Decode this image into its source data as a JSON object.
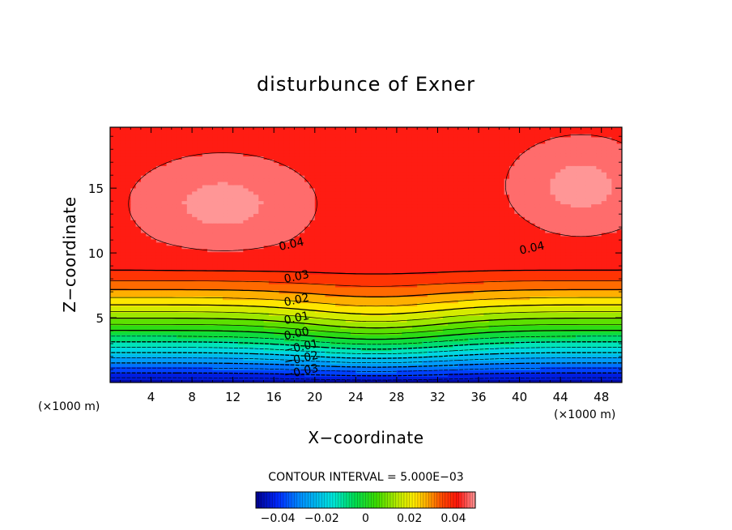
{
  "chart_data": {
    "type": "heatmap",
    "title": "disturbunce of Exner",
    "xlabel": "X−coordinate",
    "ylabel": "Z−coordinate",
    "x_unit_left": "(×1000 m)",
    "x_unit_right": "(×1000 m)",
    "xlim": [
      0,
      50
    ],
    "ylim": [
      0,
      19.7
    ],
    "x_ticks": [
      4,
      8,
      12,
      16,
      20,
      24,
      28,
      32,
      36,
      40,
      44,
      48
    ],
    "y_ticks": [
      5,
      10,
      15
    ],
    "contour_interval_text": "CONTOUR INTERVAL = 5.000E−03",
    "contour_interval": 0.005,
    "contour_labels": [
      {
        "text": "0.04",
        "x": 16.5,
        "y": 10.5
      },
      {
        "text": "0.04",
        "x": 40.0,
        "y": 10.2
      },
      {
        "text": "0.03",
        "x": 17.0,
        "y": 8.0
      },
      {
        "text": "0.02",
        "x": 17.0,
        "y": 6.2
      },
      {
        "text": "0.01",
        "x": 17.0,
        "y": 4.8
      },
      {
        "text": "0.00",
        "x": 17.0,
        "y": 3.6
      },
      {
        "text": "−0.01",
        "x": 17.0,
        "y": 2.5
      },
      {
        "text": "−0.02",
        "x": 17.0,
        "y": 1.6
      },
      {
        "text": "−0.03",
        "x": 17.0,
        "y": 0.6
      }
    ],
    "colorbar": {
      "range": [
        -0.05,
        0.05
      ],
      "tick_values": [
        -0.04,
        -0.02,
        0,
        0.02,
        0.04
      ],
      "tick_labels": [
        "−0.04",
        "−0.02",
        "0",
        "0.02",
        "0.04"
      ]
    },
    "field_notes": {
      "max_regions": [
        {
          "x": 11,
          "z": 13.8,
          "value": 0.05
        },
        {
          "x": 46,
          "z": 15.2,
          "value": 0.05
        }
      ],
      "min_region": {
        "z": 0,
        "value": -0.05
      }
    }
  }
}
